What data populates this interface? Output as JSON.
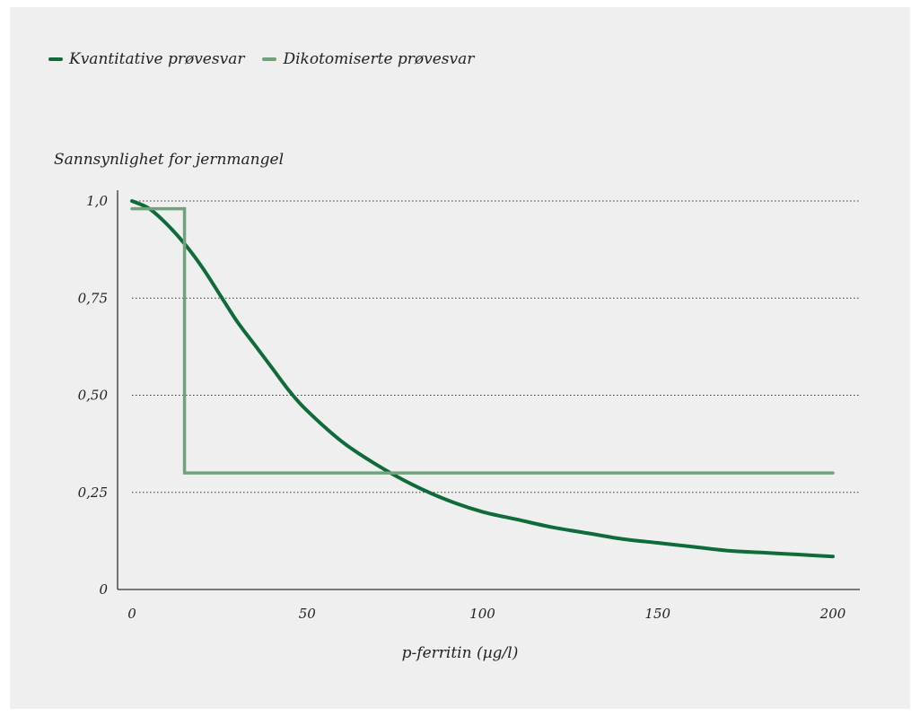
{
  "chart_data": {
    "type": "line",
    "ylabel": "Sannsynlighet for jernmangel",
    "xlabel": "p-ferritin (µg/l)",
    "xlim": [
      0,
      200
    ],
    "ylim": [
      0,
      1.0
    ],
    "x_ticks": [
      0,
      50,
      100,
      150,
      200
    ],
    "x_tick_labels": [
      "0",
      "50",
      "100",
      "150",
      "200"
    ],
    "y_ticks": [
      0,
      0.25,
      0.5,
      0.75,
      1.0
    ],
    "y_tick_labels": [
      "0",
      "0,25",
      "0,50",
      "0,75",
      "1,0"
    ],
    "grid": "horizontal dotted",
    "legend_position": "top-left",
    "series": [
      {
        "name": "Kvantitative prøvesvar",
        "color": "#0f6b3a",
        "x": [
          0,
          5,
          10,
          15,
          20,
          25,
          30,
          35,
          40,
          45,
          50,
          60,
          70,
          80,
          90,
          100,
          110,
          120,
          130,
          140,
          150,
          160,
          170,
          180,
          190,
          200
        ],
        "y": [
          1.0,
          0.98,
          0.94,
          0.89,
          0.83,
          0.76,
          0.69,
          0.63,
          0.57,
          0.51,
          0.46,
          0.38,
          0.32,
          0.27,
          0.23,
          0.2,
          0.18,
          0.16,
          0.145,
          0.13,
          0.12,
          0.11,
          0.1,
          0.095,
          0.09,
          0.085
        ]
      },
      {
        "name": "Dikotomiserte prøvesvar",
        "color": "#6fa37c",
        "x": [
          0,
          15,
          15,
          200
        ],
        "y": [
          0.98,
          0.98,
          0.3,
          0.3
        ]
      }
    ]
  }
}
